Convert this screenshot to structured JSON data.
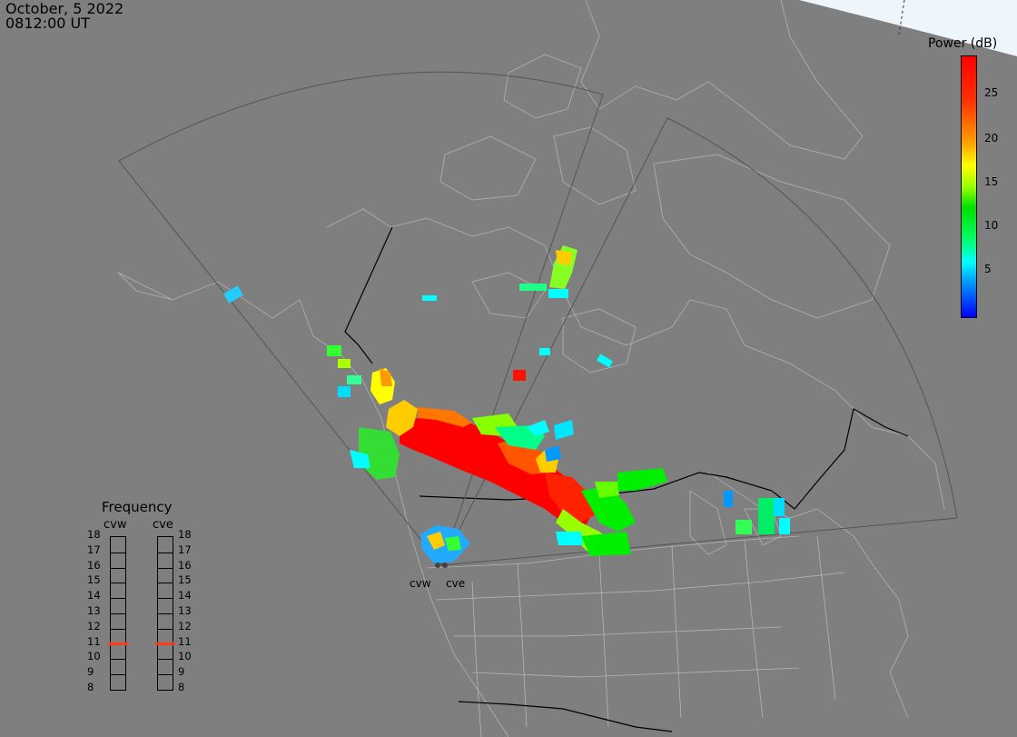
{
  "header": {
    "date": "October, 5 2022",
    "time": "0812:00 UT"
  },
  "colorbar": {
    "title": "Power (dB)",
    "ticks": [
      "25",
      "20",
      "15",
      "10",
      "5"
    ],
    "colors": [
      "#0000ff",
      "#00ffff",
      "#00e000",
      "#ffff00",
      "#ff0000"
    ]
  },
  "frequency_panel": {
    "title": "Frequency",
    "radars": [
      "cvw",
      "cve"
    ],
    "levels": [
      "18",
      "17",
      "16",
      "15",
      "14",
      "13",
      "12",
      "11",
      "10",
      "9",
      "8"
    ],
    "current": {
      "cvw": 11,
      "cve": 11
    },
    "marker_color": "#ff3b14"
  },
  "radar_sites": [
    "cvw",
    "cve"
  ]
}
